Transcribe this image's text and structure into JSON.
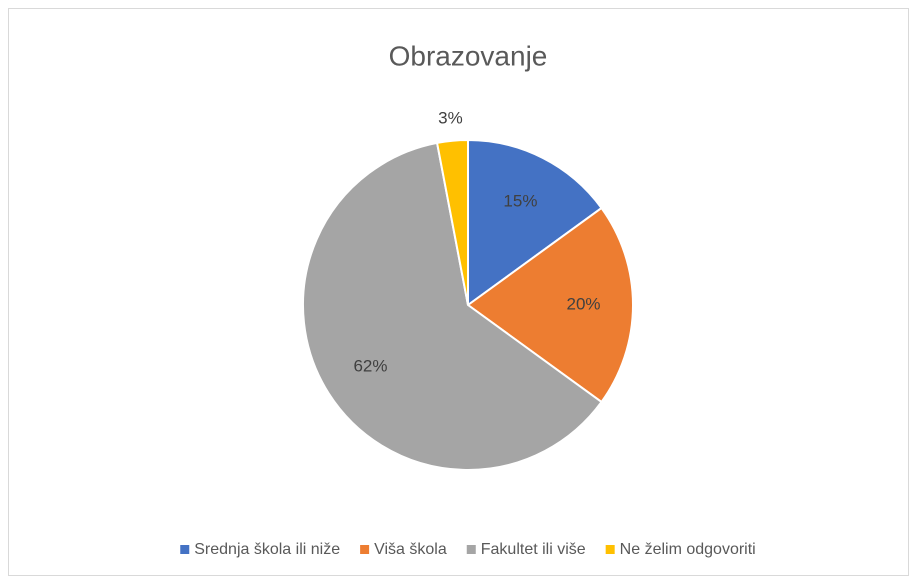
{
  "chart_data": {
    "type": "pie",
    "title": "Obrazovanje",
    "categories": [
      "Srednja škola ili niže",
      "Viša škola",
      "Fakultet ili više",
      "Ne želim odgovoriti"
    ],
    "values": [
      15,
      20,
      62,
      3
    ],
    "value_labels": [
      "15%",
      "20%",
      "62%",
      "3%"
    ],
    "colors": [
      "#4472c4",
      "#ed7d31",
      "#a5a5a5",
      "#ffc000"
    ],
    "legend": "bottom"
  }
}
